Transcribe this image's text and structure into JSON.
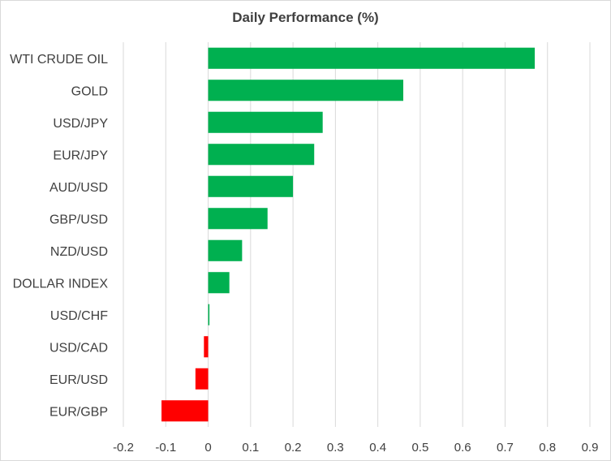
{
  "chart_data": {
    "type": "bar",
    "orientation": "horizontal",
    "title": "Daily Performance  (%)",
    "xlabel": "",
    "ylabel": "",
    "categories": [
      "WTI CRUDE OIL",
      "GOLD",
      "USD/JPY",
      "EUR/JPY",
      "AUD/USD",
      "GBP/USD",
      "NZD/USD",
      "DOLLAR INDEX",
      "USD/CHF",
      "USD/CAD",
      "EUR/USD",
      "EUR/GBP"
    ],
    "values": [
      0.77,
      0.46,
      0.27,
      0.25,
      0.2,
      0.14,
      0.08,
      0.05,
      0.003,
      -0.01,
      -0.03,
      -0.11
    ],
    "xlim": [
      -0.2,
      0.9
    ],
    "x_ticks": [
      "-0.2",
      "-0.1",
      "0",
      "0.1",
      "0.2",
      "0.3",
      "0.4",
      "0.5",
      "0.6",
      "0.7",
      "0.8",
      "0.9"
    ],
    "grid": "vertical",
    "legend": "none",
    "colors": {
      "positive": "#00b050",
      "negative": "#ff0000",
      "grid": "#d9d9d9",
      "text": "#404040"
    }
  }
}
